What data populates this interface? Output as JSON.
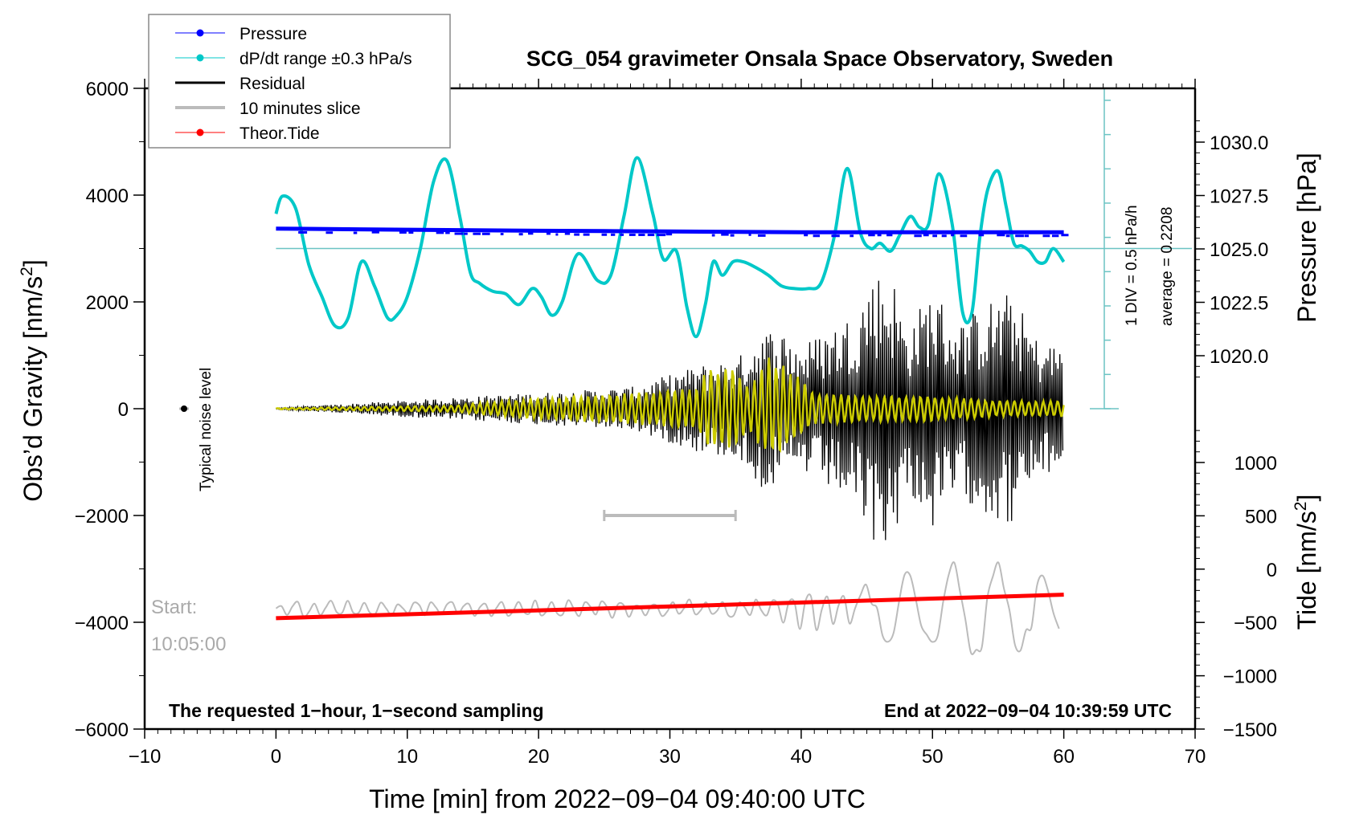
{
  "chart_data": {
    "type": "line",
    "title": "SCG_054 gravimeter Onsala Space Observatory, Sweden",
    "xlabel": "Time [min] from 2022−09−04 09:40:00 UTC",
    "ylabel_left": "Obs’d Gravity [nm/s²]",
    "ylabel_left_main": "Obs’d Gravity [nm/s",
    "ylabel_left_sup": "2",
    "ylabel_left_end": "]",
    "ylabel_right_top": "Pressure [hPa]",
    "ylabel_right_bottom_main": "Tide [nm/s",
    "ylabel_right_bottom_sup": "2",
    "ylabel_right_bottom_end": "]",
    "xlim": [
      -10,
      70
    ],
    "ylim_left": [
      -6000,
      6000
    ],
    "pressure_axis_range": [
      1020.0,
      1030.0
    ],
    "tide_axis_range": [
      -1500,
      1000
    ],
    "x_ticks": [
      "−10",
      "0",
      "10",
      "20",
      "30",
      "40",
      "50",
      "60",
      "70"
    ],
    "x_tick_values": [
      -10,
      0,
      10,
      20,
      30,
      40,
      50,
      60,
      70
    ],
    "y_left_ticks": [
      "6000",
      "4000",
      "2000",
      "0",
      "−2000",
      "−4000",
      "−6000"
    ],
    "y_left_tick_values": [
      6000,
      4000,
      2000,
      0,
      -2000,
      -4000,
      -6000
    ],
    "pressure_ticks": [
      "1030.0",
      "1027.5",
      "1025.0",
      "1022.5",
      "1020.0"
    ],
    "pressure_tick_values": [
      1030.0,
      1027.5,
      1025.0,
      1022.5,
      1020.0
    ],
    "tide_ticks": [
      "1000",
      "500",
      "0",
      "−500",
      "−1000",
      "−1500"
    ],
    "tide_tick_values": [
      1000,
      500,
      0,
      -500,
      -1000,
      -1500
    ],
    "grid": false,
    "legend_placement": "top-left",
    "legend": [
      {
        "label": "Pressure",
        "color": "#0000ff",
        "marker": "dot"
      },
      {
        "label": "dP/dt range ±0.3 hPa/s",
        "color": "#00c8c8",
        "marker": "dot"
      },
      {
        "label": "Residual",
        "color": "#000000",
        "marker": "line"
      },
      {
        "label": "10 minutes slice",
        "color": "#bbbbbb",
        "marker": "line"
      },
      {
        "label": "Theor.Tide",
        "color": "#ff0000",
        "marker": "dot"
      }
    ],
    "series": [
      {
        "name": "Pressure",
        "axis": "pressure",
        "color": "#0000ff",
        "x": [
          0,
          10,
          20,
          30,
          40,
          50,
          60
        ],
        "values": [
          1025.95,
          1025.9,
          1025.85,
          1025.82,
          1025.78,
          1025.78,
          1025.78
        ]
      },
      {
        "name": "dP/dt",
        "axis": "left",
        "color": "#00c8c8",
        "x": [
          0,
          0.5,
          1.5,
          2.5,
          3.5,
          4.5,
          5.5,
          6.5,
          7.5,
          8.5,
          9.2,
          10,
          11,
          12,
          13,
          14,
          14.8,
          15.5,
          16.5,
          17.5,
          18.5,
          19.5,
          20.2,
          21,
          21.8,
          23,
          24.5,
          25.5,
          26.5,
          27.5,
          28.7,
          29.5,
          30.5,
          31.3,
          32,
          32.7,
          33.3,
          34,
          34.8,
          35.6,
          36.5,
          37.5,
          38.5,
          39.5,
          40.5,
          41.5,
          42.5,
          43.5,
          44.5,
          45.3,
          46,
          46.8,
          47.5,
          48.3,
          49,
          49.7,
          50.5,
          51.5,
          52.3,
          53,
          53.6,
          54.2,
          55,
          55.6,
          56.2,
          56.8,
          57.4,
          58,
          58.6,
          59.2,
          60
        ],
        "values": [
          3650,
          3980,
          3750,
          2700,
          2100,
          1550,
          1700,
          2750,
          2300,
          1700,
          1750,
          2100,
          3000,
          4250,
          4650,
          3600,
          2550,
          2350,
          2200,
          2150,
          1950,
          2250,
          2100,
          1750,
          2000,
          2900,
          2400,
          2500,
          3600,
          4700,
          3650,
          2800,
          2950,
          1900,
          1350,
          1950,
          2750,
          2500,
          2750,
          2750,
          2650,
          2500,
          2300,
          2250,
          2250,
          2350,
          3200,
          4500,
          3300,
          3000,
          3100,
          2950,
          3250,
          3600,
          3400,
          3450,
          4400,
          3450,
          1800,
          1800,
          3200,
          4100,
          4450,
          3800,
          3100,
          3050,
          2950,
          2750,
          2750,
          3000,
          2750
        ]
      },
      {
        "name": "Residual",
        "axis": "left",
        "color": "#000000",
        "x_start": 0,
        "x_end": 60,
        "envelope": {
          "x": [
            0,
            13,
            20,
            27,
            32,
            33.5,
            35,
            37,
            38.5,
            40,
            42,
            44,
            45.5,
            47,
            48,
            50,
            52,
            54,
            56,
            58,
            60
          ],
          "amplitude": [
            15,
            200,
            300,
            400,
            800,
            900,
            900,
            1500,
            1500,
            1200,
            1500,
            1800,
            2600,
            2500,
            1500,
            2300,
            1600,
            2000,
            2200,
            1300,
            1200
          ]
        }
      },
      {
        "name": "Band-filtered (yellow)",
        "axis": "left",
        "color": "#cccc00",
        "x_start": 0,
        "x_end": 60,
        "envelope": {
          "x": [
            0,
            13,
            20,
            27,
            32,
            33,
            35,
            36,
            37.5,
            39,
            41,
            45,
            50,
            55,
            60
          ],
          "amplitude": [
            10,
            60,
            200,
            300,
            400,
            800,
            800,
            400,
            1000,
            800,
            300,
            250,
            250,
            150,
            150
          ]
        }
      },
      {
        "name": "10 minutes slice",
        "axis": "left",
        "color": "#bbbbbb",
        "x_start": 0,
        "x_end": 60,
        "baseline": -3750,
        "envelope": {
          "x": [
            0,
            20,
            38,
            40,
            42,
            45,
            47,
            49,
            51,
            53,
            55,
            57,
            59,
            60
          ],
          "amplitude": [
            150,
            180,
            200,
            400,
            400,
            500,
            700,
            1000,
            900,
            1100,
            1000,
            1100,
            600,
            700
          ]
        }
      },
      {
        "name": "Theor.Tide",
        "axis": "tide",
        "color": "#ff0000",
        "x": [
          0,
          60
        ],
        "values": [
          -460,
          -240
        ]
      }
    ],
    "dpdt_reference": {
      "average_value": 0.2208,
      "division": "1 DIV = 0.5 hPa/h",
      "line_value_left_axis": 3000
    },
    "ten_minute_slice_window": [
      25,
      35
    ],
    "noise_marker": {
      "x": -7,
      "y": 0,
      "label": "Typical noise level"
    }
  },
  "annotations": {
    "div_label": "1 DIV = 0.5 hPa/h",
    "average_label": "average = 0.2208",
    "noise_label": "Typical noise level",
    "start_label": "Start:",
    "start_time": "10:05:00",
    "bottom_left": "The requested 1−hour, 1−second sampling",
    "bottom_right": "End at 2022−09−04 10:39:59 UTC"
  }
}
